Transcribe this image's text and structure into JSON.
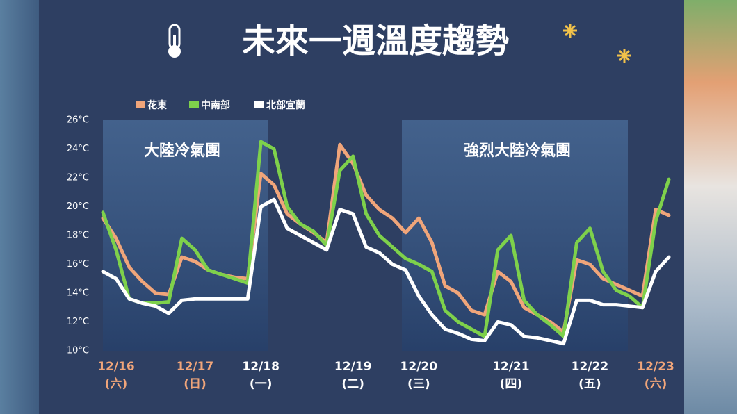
{
  "chart_data": {
    "type": "line",
    "title": "未來一週溫度趨勢",
    "categories": [
      null,
      "12/16",
      null,
      null,
      null,
      null,
      null,
      "12/17",
      null,
      null,
      null,
      null,
      "12/18",
      null,
      null,
      null,
      null,
      null,
      null,
      "12/19",
      null,
      null,
      null,
      null,
      "12/20",
      null,
      null,
      null,
      null,
      null,
      null,
      "12/21",
      null,
      null,
      null,
      null,
      null,
      "12/22",
      null,
      null,
      null,
      null,
      "12/23",
      null
    ],
    "weekdays": [
      null,
      "(六)",
      null,
      null,
      null,
      null,
      null,
      "(日)",
      null,
      null,
      null,
      null,
      "(一)",
      null,
      null,
      null,
      null,
      null,
      null,
      "(二)",
      null,
      null,
      null,
      null,
      "(三)",
      null,
      null,
      null,
      null,
      null,
      null,
      "(四)",
      null,
      null,
      null,
      null,
      null,
      "(五)",
      null,
      null,
      null,
      null,
      "(六)",
      null
    ],
    "weekend_dates": [
      "12/16",
      "12/17",
      "12/23"
    ],
    "weekend_color": "#f0a57a",
    "date_color": "#ffffff",
    "series": [
      {
        "name": "花東",
        "color": "#f0a57a",
        "values": [
          19.2,
          17.8,
          15.8,
          14.8,
          14.0,
          13.9,
          16.5,
          16.2,
          15.6,
          15.3,
          15.1,
          15.0,
          22.3,
          21.5,
          19.5,
          18.8,
          18.2,
          17.5,
          24.3,
          23.0,
          20.8,
          19.8,
          19.2,
          18.2,
          19.2,
          17.5,
          14.5,
          14.0,
          12.8,
          12.5,
          15.5,
          14.8,
          13.0,
          12.5,
          12.0,
          11.3,
          16.3,
          16.0,
          15.0,
          14.6,
          14.2,
          13.8,
          19.8,
          19.4
        ]
      },
      {
        "name": "中南部",
        "color": "#7ed14b",
        "values": [
          19.6,
          17.0,
          13.6,
          13.3,
          13.3,
          13.4,
          17.8,
          17.0,
          15.6,
          15.3,
          15.0,
          14.7,
          24.5,
          24.0,
          20.0,
          18.8,
          18.3,
          17.3,
          22.5,
          23.5,
          19.5,
          18.0,
          17.2,
          16.4,
          16.0,
          15.5,
          12.8,
          12.0,
          11.5,
          11.0,
          17.0,
          18.0,
          13.5,
          12.5,
          11.8,
          11.0,
          17.5,
          18.5,
          15.5,
          14.2,
          13.8,
          13.0,
          19.0,
          21.9
        ]
      },
      {
        "name": "北部宜蘭",
        "color": "#ffffff",
        "values": [
          15.5,
          15.0,
          13.6,
          13.3,
          13.1,
          12.6,
          13.5,
          13.6,
          13.6,
          13.6,
          13.6,
          13.6,
          20.0,
          20.5,
          18.5,
          18.0,
          17.5,
          17.0,
          19.8,
          19.5,
          17.2,
          16.8,
          16.0,
          15.6,
          13.8,
          12.5,
          11.5,
          11.2,
          10.8,
          10.7,
          12.0,
          11.8,
          11.0,
          10.9,
          10.7,
          10.5,
          13.5,
          13.5,
          13.2,
          13.2,
          13.1,
          13.0,
          15.5,
          16.5
        ]
      }
    ],
    "annotations": [
      "大陸冷氣團",
      "強烈大陸冷氣團"
    ],
    "ylim": [
      10,
      26
    ],
    "yticks": [
      {
        "value": 10,
        "label": "10°C"
      },
      {
        "value": 12,
        "label": "12°C"
      },
      {
        "value": 14,
        "label": "14°C"
      },
      {
        "value": 16,
        "label": "16°C"
      },
      {
        "value": 18,
        "label": "18°C"
      },
      {
        "value": 20,
        "label": "20°C"
      },
      {
        "value": 22,
        "label": "22°C"
      },
      {
        "value": 24,
        "label": "24°C"
      },
      {
        "value": 26,
        "label": "26°C"
      }
    ]
  }
}
